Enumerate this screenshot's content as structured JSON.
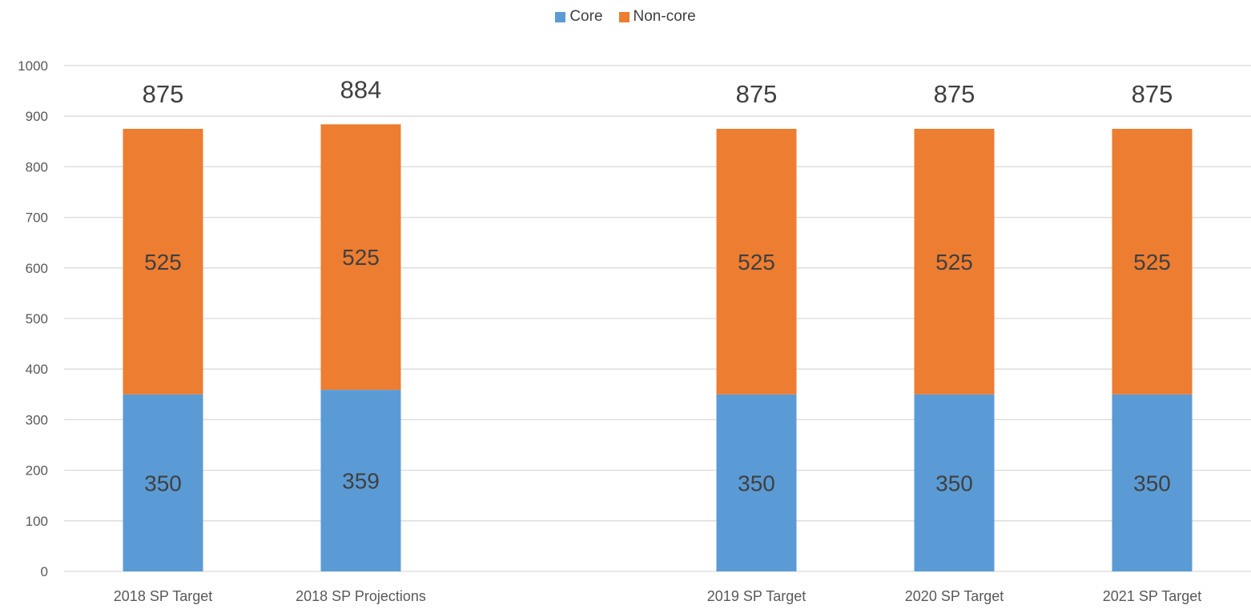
{
  "chart_data": {
    "type": "bar",
    "stacked": true,
    "categories": [
      "2018 SP Target",
      "2018 SP Projections",
      "",
      "2019 SP Target",
      "2020 SP Target",
      "2021 SP Target"
    ],
    "series": [
      {
        "name": "Core",
        "color": "#5B9BD5",
        "values": [
          350,
          359,
          null,
          350,
          350,
          350
        ]
      },
      {
        "name": "Non-core",
        "color": "#ED7D31",
        "values": [
          525,
          525,
          null,
          525,
          525,
          525
        ]
      }
    ],
    "totals": [
      875,
      884,
      null,
      875,
      875,
      875
    ],
    "ylim": [
      0,
      1000
    ],
    "yticks": [
      0,
      100,
      200,
      300,
      400,
      500,
      600,
      700,
      800,
      900,
      1000
    ],
    "legend_position": "top-center",
    "grid": true,
    "title": "",
    "xlabel": "",
    "ylabel": ""
  }
}
